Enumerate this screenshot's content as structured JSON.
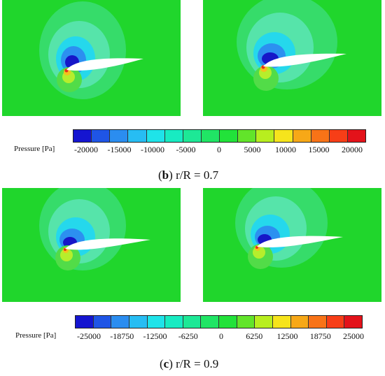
{
  "figures": [
    {
      "id": "b",
      "colorbar_title": "Pressure [Pa]",
      "ticks": [
        "-20000",
        "-15000",
        "-10000",
        "-5000",
        "0",
        "5000",
        "10000",
        "15000",
        "20000"
      ],
      "colors": [
        "#1515d0",
        "#1f55e6",
        "#2b8df0",
        "#27bdf3",
        "#1fe3e9",
        "#18ebc2",
        "#1de896",
        "#20e565",
        "#22e23a",
        "#62e42a",
        "#b8ee1f",
        "#f6e41c",
        "#f7a817",
        "#f87317",
        "#f73e17",
        "#e3121a"
      ],
      "caption_label": "b",
      "caption_text": "r/R = 0.7"
    },
    {
      "id": "c",
      "colorbar_title": "Pressure [Pa]",
      "ticks": [
        "-25000",
        "-18750",
        "-12500",
        "-6250",
        "0",
        "6250",
        "12500",
        "18750",
        "25000"
      ],
      "colors": [
        "#1515d0",
        "#1f55e6",
        "#2b8df0",
        "#27bdf3",
        "#1fe3e9",
        "#18ebc2",
        "#1de896",
        "#20e565",
        "#22e23a",
        "#62e42a",
        "#b8ee1f",
        "#f6e41c",
        "#f7a817",
        "#f87317",
        "#f73e17",
        "#e3121a"
      ],
      "caption_label": "c",
      "caption_text": "r/R = 0.9"
    }
  ]
}
